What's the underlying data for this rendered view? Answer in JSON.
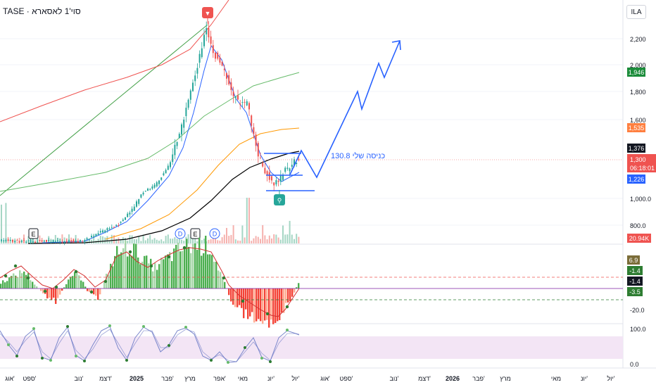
{
  "header": {
    "title": "TASE · סוי'1 לאסארא",
    "currency": "ILA"
  },
  "colors": {
    "up": "#26a69a",
    "down": "#ef5350",
    "volume_up": "#a5d6c4",
    "volume_down": "#f5b1ae",
    "projection": "#2962ff",
    "sma_red": "#ef5350",
    "sma_green": "#43a047",
    "sma_orange": "#ff9800",
    "sma_black": "#000000",
    "ema_blue": "#2962ff",
    "trendline_green": "#43a047",
    "hist_green": "#4caf50",
    "hist_red": "#f44336",
    "stoch_fill": "#f3e5f5"
  },
  "price_axis": {
    "ticks": [
      "2,200",
      "2,000",
      "1,800",
      "1,600",
      "1,000.0",
      "800.0"
    ],
    "badges": [
      {
        "label": "1,946",
        "color": "#1b8c3a"
      },
      {
        "label": "1,535",
        "color": "#ff7f3f"
      },
      {
        "label": "1,376",
        "color": "#131722"
      },
      {
        "label": "1,300",
        "color": "#ef5350"
      },
      {
        "label": "06:18:01",
        "color": "#ef5350"
      },
      {
        "label": "1,226",
        "color": "#2962ff"
      },
      {
        "label": "20.94K",
        "color": "#ef5350"
      }
    ]
  },
  "osc_axis": {
    "badges": [
      {
        "label": "6.9",
        "color": "#7b6d39"
      },
      {
        "label": "-1.4",
        "color": "#2e7d32"
      },
      {
        "label": "-1.4",
        "color": "#131722"
      },
      {
        "label": "-3.5",
        "color": "#2e7d32"
      }
    ],
    "ticks": [
      "-20.0"
    ]
  },
  "stoch_axis": {
    "ticks": [
      "100.0",
      "0.0"
    ]
  },
  "time_axis": {
    "labels": [
      "אוג'",
      "ספט'",
      "נוב'",
      "דצמ'",
      "2025",
      "פבר'",
      "מרץ",
      "אפר'",
      "מאי",
      "יונ'",
      "יול'",
      "אוג'",
      "ספט'",
      "נוב'",
      "דצמ'",
      "2026",
      "פבר'",
      "מרץ",
      "מאי",
      "יונ'",
      "יול'"
    ]
  },
  "annotations": {
    "entry_text": "כניסה שלי 130.8",
    "marker_top": "▼",
    "marker_bottom": "⚲",
    "event_e": "E",
    "event_d": "D"
  }
}
